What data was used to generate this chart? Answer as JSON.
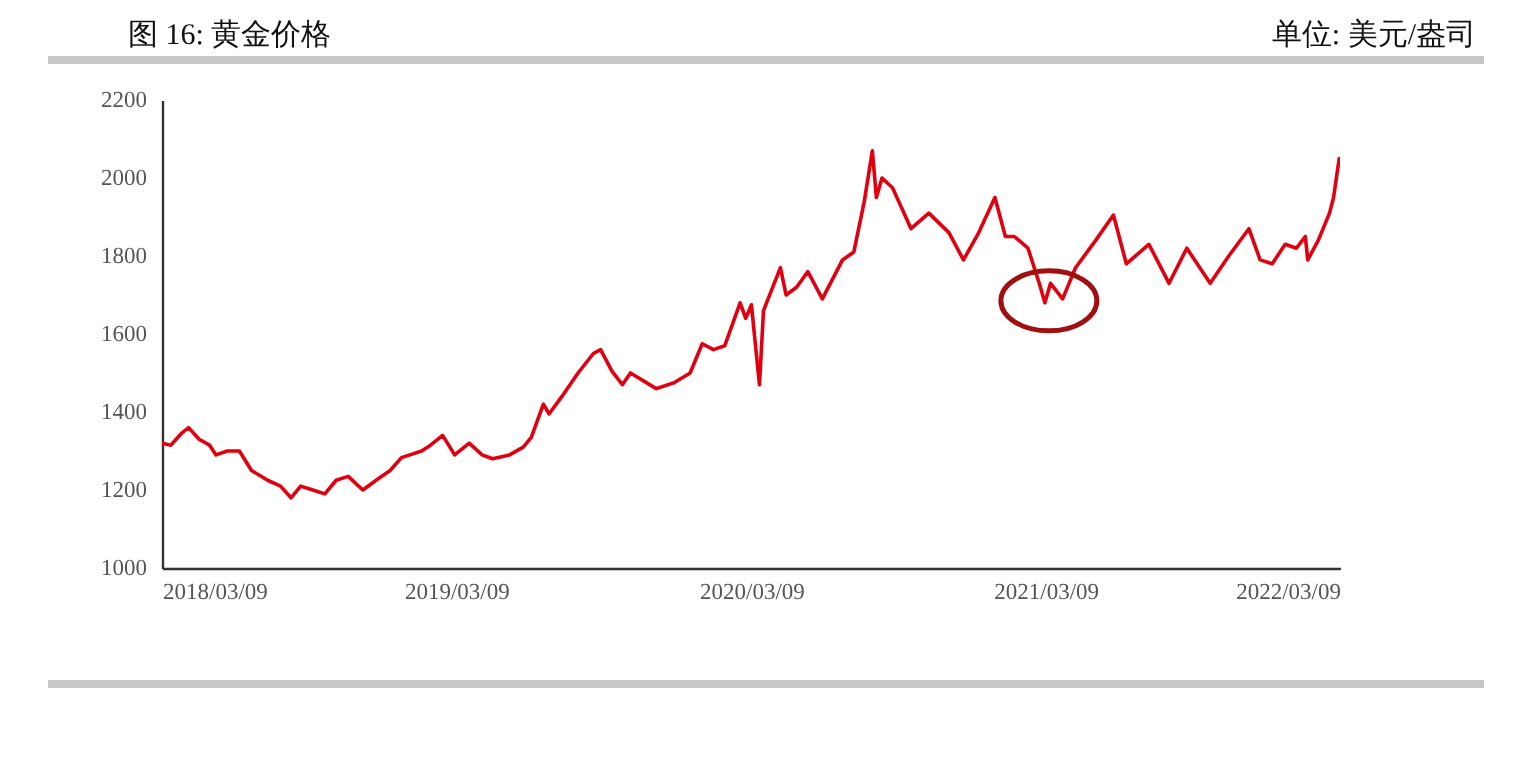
{
  "chart_data": {
    "type": "line",
    "title": "图 16: 黄金价格",
    "subtitle": "单位: 美元/盎司",
    "x": [
      "2018-03-09",
      "2018-03-20",
      "2018-04-02",
      "2018-04-11",
      "2018-04-24",
      "2018-05-07",
      "2018-05-15",
      "2018-05-29",
      "2018-06-13",
      "2018-06-28",
      "2018-07-18",
      "2018-08-03",
      "2018-08-16",
      "2018-08-28",
      "2018-09-12",
      "2018-09-27",
      "2018-10-11",
      "2018-10-26",
      "2018-11-13",
      "2018-12-03",
      "2018-12-17",
      "2018-12-31",
      "2019-01-25",
      "2019-02-05",
      "2019-02-20",
      "2019-03-07",
      "2019-03-25",
      "2019-04-10",
      "2019-04-23",
      "2019-05-14",
      "2019-05-31",
      "2019-06-10",
      "2019-06-25",
      "2019-07-02",
      "2019-07-18",
      "2019-08-07",
      "2019-08-26",
      "2019-09-04",
      "2019-09-18",
      "2019-10-01",
      "2019-10-11",
      "2019-11-12",
      "2019-12-04",
      "2019-12-24",
      "2020-01-08",
      "2020-01-22",
      "2020-02-05",
      "2020-02-24",
      "2020-03-02",
      "2020-03-09",
      "2020-03-19",
      "2020-03-24",
      "2020-04-14",
      "2020-04-21",
      "2020-05-04",
      "2020-05-18",
      "2020-06-05",
      "2020-06-30",
      "2020-07-14",
      "2020-07-27",
      "2020-08-06",
      "2020-08-11",
      "2020-08-18",
      "2020-08-31",
      "2020-09-23",
      "2020-10-15",
      "2020-11-09",
      "2020-11-27",
      "2020-12-16",
      "2021-01-05",
      "2021-01-18",
      "2021-01-29",
      "2021-02-15",
      "2021-03-01",
      "2021-03-08",
      "2021-03-15",
      "2021-03-30",
      "2021-04-15",
      "2021-05-10",
      "2021-06-01",
      "2021-06-17",
      "2021-07-15",
      "2021-08-09",
      "2021-08-31",
      "2021-09-29",
      "2021-10-22",
      "2021-11-16",
      "2021-11-30",
      "2021-12-15",
      "2021-12-31",
      "2022-01-14",
      "2022-01-25",
      "2022-01-28",
      "2022-02-10",
      "2022-02-24",
      "2022-03-01",
      "2022-03-08"
    ],
    "series": [
      {
        "color": "#e0000f",
        "values": [
          1320,
          1315,
          1345,
          1360,
          1330,
          1315,
          1290,
          1300,
          1300,
          1250,
          1225,
          1210,
          1180,
          1210,
          1200,
          1190,
          1225,
          1235,
          1200,
          1230,
          1250,
          1283,
          1300,
          1315,
          1340,
          1290,
          1320,
          1290,
          1280,
          1290,
          1310,
          1335,
          1420,
          1395,
          1440,
          1500,
          1550,
          1560,
          1505,
          1470,
          1500,
          1460,
          1475,
          1500,
          1575,
          1560,
          1570,
          1680,
          1640,
          1675,
          1470,
          1660,
          1770,
          1700,
          1720,
          1760,
          1690,
          1790,
          1810,
          1940,
          2070,
          1950,
          2000,
          1975,
          1870,
          1910,
          1860,
          1790,
          1860,
          1950,
          1850,
          1850,
          1820,
          1730,
          1680,
          1730,
          1690,
          1770,
          1840,
          1905,
          1780,
          1830,
          1730,
          1820,
          1730,
          1800,
          1870,
          1790,
          1780,
          1830,
          1820,
          1850,
          1790,
          1840,
          1910,
          1950,
          2050
        ]
      }
    ],
    "xlim": [
      "2018-03-09",
      "2022-03-09"
    ],
    "xticks": [
      {
        "value": "2018-03-09",
        "label": "2018/03/09"
      },
      {
        "value": "2019-03-09",
        "label": "2019/03/09"
      },
      {
        "value": "2020-03-09",
        "label": "2020/03/09"
      },
      {
        "value": "2021-03-09",
        "label": "2021/03/09"
      },
      {
        "value": "2022-03-09",
        "label": "2022/03/09"
      }
    ],
    "ylim": [
      1000,
      2200
    ],
    "yticks": [
      1000,
      1200,
      1400,
      1600,
      1800,
      2000,
      2200
    ],
    "grid": false
  }
}
